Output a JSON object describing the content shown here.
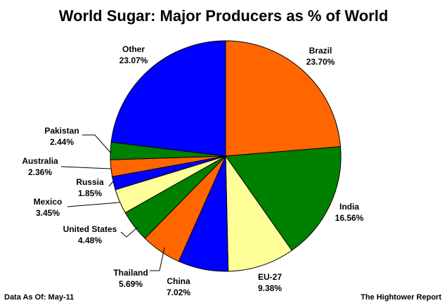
{
  "chart_data": {
    "type": "pie",
    "title": "World Sugar: Major Producers as % of World",
    "slices": [
      {
        "label": "Brazil",
        "value": 23.7,
        "value_text": "23.70%",
        "color": "#FF6600"
      },
      {
        "label": "India",
        "value": 16.56,
        "value_text": "16.56%",
        "color": "#008000"
      },
      {
        "label": "EU-27",
        "value": 9.38,
        "value_text": "9.38%",
        "color": "#FFFF99"
      },
      {
        "label": "China",
        "value": 7.02,
        "value_text": "7.02%",
        "color": "#0000FF"
      },
      {
        "label": "Thailand",
        "value": 5.69,
        "value_text": "5.69%",
        "color": "#FF6600"
      },
      {
        "label": "United States",
        "value": 4.48,
        "value_text": "4.48%",
        "color": "#008000"
      },
      {
        "label": "Mexico",
        "value": 3.45,
        "value_text": "3.45%",
        "color": "#FFFF99"
      },
      {
        "label": "Russia",
        "value": 1.85,
        "value_text": "1.85%",
        "color": "#0000FF"
      },
      {
        "label": "Australia",
        "value": 2.36,
        "value_text": "2.36%",
        "color": "#FF6600"
      },
      {
        "label": "Pakistan",
        "value": 2.44,
        "value_text": "2.44%",
        "color": "#008000"
      },
      {
        "label": "Other",
        "value": 23.07,
        "value_text": "23.07%",
        "color": "#0000FF"
      }
    ]
  },
  "footer": {
    "left": "Data As Of: May-11",
    "right": "The Hightower Report"
  }
}
